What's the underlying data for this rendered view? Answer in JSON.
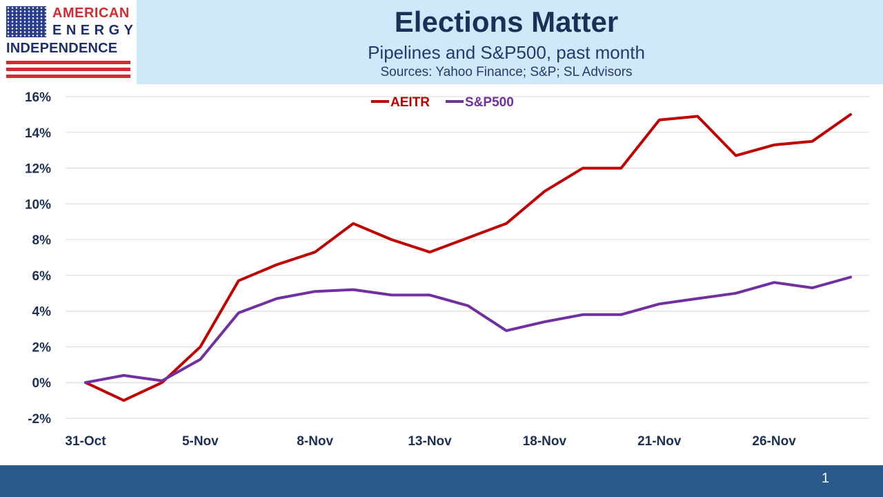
{
  "logo": {
    "line1": "AMERICAN",
    "line2": "ENERGY",
    "line3": "INDEPENDENCE"
  },
  "header": {
    "title": "Elections Matter",
    "subtitle": "Pipelines and S&P500, past month",
    "source": "Sources: Yahoo Finance; S&P; SL Advisors"
  },
  "footer": {
    "page_number": "1"
  },
  "colors": {
    "header_bg": "#cfe9fb",
    "footer_bg": "#28598a",
    "aeitr": "#c00000",
    "sp500": "#7030a0"
  },
  "chart_data": {
    "type": "line",
    "title": "Elections Matter",
    "subtitle": "Pipelines and S&P500, past month",
    "xlabel": "",
    "ylabel": "",
    "x": [
      "31-Oct",
      "1-Nov",
      "4-Nov",
      "5-Nov",
      "6-Nov",
      "7-Nov",
      "8-Nov",
      "11-Nov",
      "12-Nov",
      "13-Nov",
      "14-Nov",
      "15-Nov",
      "18-Nov",
      "19-Nov",
      "20-Nov",
      "21-Nov",
      "22-Nov",
      "25-Nov",
      "26-Nov",
      "27-Nov",
      "29-Nov"
    ],
    "x_tick_labels": [
      "31-Oct",
      "5-Nov",
      "8-Nov",
      "13-Nov",
      "18-Nov",
      "21-Nov",
      "26-Nov"
    ],
    "x_tick_index": [
      0,
      3,
      6,
      9,
      12,
      15,
      18
    ],
    "y_tick_labels": [
      "-2%",
      "0%",
      "2%",
      "4%",
      "6%",
      "8%",
      "10%",
      "12%",
      "14%",
      "16%"
    ],
    "ylim": [
      -2,
      16
    ],
    "y_unit": "%",
    "grid": true,
    "legend_position": "top",
    "series": [
      {
        "name": "AEITR",
        "color": "#c00000",
        "values": [
          0.0,
          -1.0,
          0.0,
          2.0,
          5.7,
          6.6,
          7.3,
          8.9,
          8.0,
          7.3,
          8.1,
          8.9,
          10.7,
          12.0,
          12.0,
          14.7,
          14.9,
          12.7,
          13.3,
          13.5,
          15.0
        ]
      },
      {
        "name": "S&P500",
        "color": "#7030a0",
        "values": [
          0.0,
          0.4,
          0.1,
          1.3,
          3.9,
          4.7,
          5.1,
          5.2,
          4.9,
          4.9,
          4.3,
          2.9,
          3.4,
          3.8,
          3.8,
          4.4,
          4.7,
          5.0,
          5.6,
          5.3,
          5.9
        ]
      }
    ]
  }
}
